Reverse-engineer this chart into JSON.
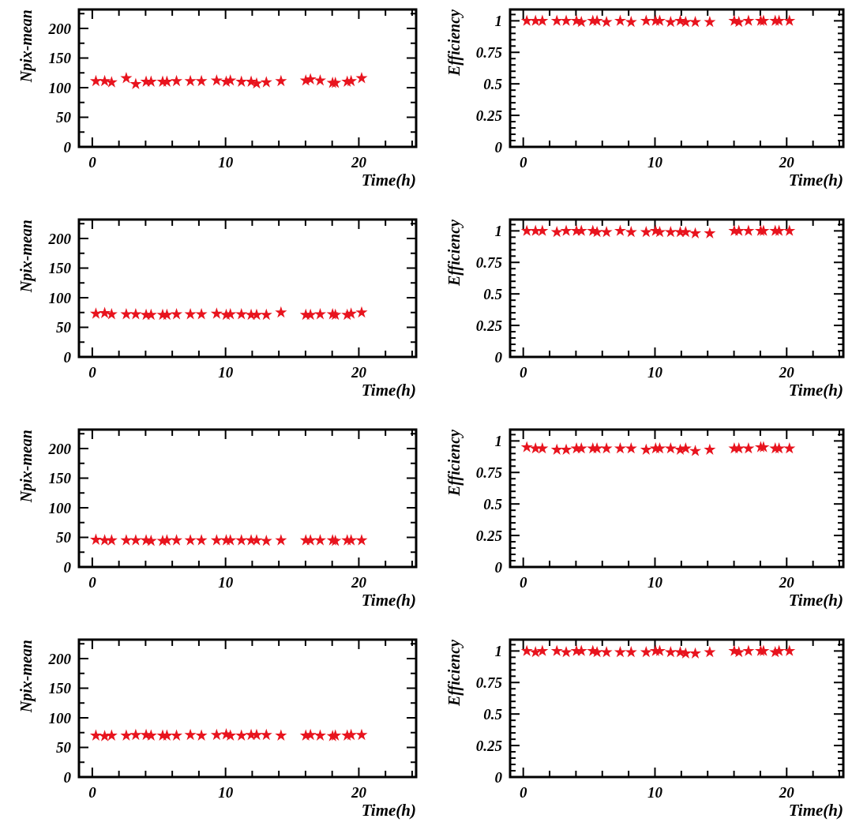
{
  "chart_data": [
    {
      "type": "scatter",
      "ylabel": "Npix-mean",
      "xlabel": "Time(h)",
      "marker": "star",
      "color": "#e8141e",
      "xlim": [
        -1,
        24.3
      ],
      "ylim": [
        0,
        232
      ],
      "xticks": [
        0,
        {
          "value": 2,
          "label": null
        },
        {
          "value": 4,
          "label": null
        },
        {
          "value": 6,
          "label": null
        },
        {
          "value": 8,
          "label": null
        },
        10,
        {
          "value": 12,
          "label": null
        },
        {
          "value": 14,
          "label": null
        },
        {
          "value": 16,
          "label": null
        },
        {
          "value": 18,
          "label": null
        },
        20,
        {
          "value": 22,
          "label": null
        },
        {
          "value": 24,
          "label": null
        }
      ],
      "yticks": [
        0,
        {
          "value": 25,
          "label": null
        },
        50,
        {
          "value": 75,
          "label": null
        },
        100,
        {
          "value": 125,
          "label": null
        },
        150,
        {
          "value": 175,
          "label": null
        },
        200,
        {
          "value": 225,
          "label": null
        }
      ],
      "x": [
        0.27,
        0.93,
        1.45,
        2.55,
        3.26,
        4.04,
        4.41,
        5.28,
        5.6,
        6.32,
        7.36,
        8.19,
        9.33,
        10.05,
        10.36,
        11.19,
        11.92,
        12.33,
        13.06,
        14.16,
        16.02,
        16.37,
        17.1,
        18.03,
        18.24,
        19.13,
        19.42,
        20.21
      ],
      "values": [
        111,
        111,
        109,
        116,
        106,
        110,
        110,
        110,
        110,
        111,
        111,
        111,
        112,
        110,
        112,
        110,
        110,
        107,
        109,
        111,
        112,
        114,
        112,
        108,
        108,
        110,
        111,
        116
      ]
    },
    {
      "type": "scatter",
      "ylabel": "Efficiency",
      "xlabel": "Time(h)",
      "marker": "star",
      "color": "#e8141e",
      "xlim": [
        -1,
        24.3
      ],
      "ylim": [
        0,
        1.09
      ],
      "xticks": [
        0,
        {
          "value": 2,
          "label": null
        },
        {
          "value": 4,
          "label": null
        },
        {
          "value": 6,
          "label": null
        },
        {
          "value": 8,
          "label": null
        },
        10,
        {
          "value": 12,
          "label": null
        },
        {
          "value": 14,
          "label": null
        },
        {
          "value": 16,
          "label": null
        },
        {
          "value": 18,
          "label": null
        },
        20,
        {
          "value": 22,
          "label": null
        },
        {
          "value": 24,
          "label": null
        }
      ],
      "yticks": [
        0,
        {
          "value": 0.05,
          "label": null
        },
        {
          "value": 0.1,
          "label": null
        },
        {
          "value": 0.15,
          "label": null
        },
        {
          "value": 0.2,
          "label": null
        },
        0.25,
        {
          "value": 0.3,
          "label": null
        },
        {
          "value": 0.35,
          "label": null
        },
        {
          "value": 0.4,
          "label": null
        },
        {
          "value": 0.45,
          "label": null
        },
        0.5,
        {
          "value": 0.55,
          "label": null
        },
        {
          "value": 0.6,
          "label": null
        },
        {
          "value": 0.65,
          "label": null
        },
        {
          "value": 0.7,
          "label": null
        },
        0.75,
        {
          "value": 0.8,
          "label": null
        },
        {
          "value": 0.85,
          "label": null
        },
        {
          "value": 0.9,
          "label": null
        },
        {
          "value": 0.95,
          "label": null
        },
        1,
        {
          "value": 1.05,
          "label": null
        }
      ],
      "x": [
        0.27,
        0.93,
        1.45,
        2.55,
        3.26,
        4.04,
        4.41,
        5.28,
        5.6,
        6.32,
        7.36,
        8.19,
        9.33,
        10.05,
        10.36,
        11.19,
        11.92,
        12.33,
        13.06,
        14.16,
        16.02,
        16.37,
        17.1,
        18.03,
        18.24,
        19.13,
        19.42,
        20.21
      ],
      "values": [
        1,
        1,
        1,
        1,
        1,
        1,
        0.99,
        1,
        1,
        0.99,
        1,
        0.99,
        1,
        1,
        1,
        0.99,
        1,
        0.99,
        0.99,
        0.99,
        1,
        0.99,
        1,
        1,
        1,
        1,
        1,
        1
      ]
    },
    {
      "type": "scatter",
      "ylabel": "Npix-mean",
      "xlabel": "Time(h)",
      "marker": "star",
      "color": "#e8141e",
      "xlim": [
        -1,
        24.3
      ],
      "ylim": [
        0,
        232
      ],
      "xticks": [
        0,
        {
          "value": 2,
          "label": null
        },
        {
          "value": 4,
          "label": null
        },
        {
          "value": 6,
          "label": null
        },
        {
          "value": 8,
          "label": null
        },
        10,
        {
          "value": 12,
          "label": null
        },
        {
          "value": 14,
          "label": null
        },
        {
          "value": 16,
          "label": null
        },
        {
          "value": 18,
          "label": null
        },
        20,
        {
          "value": 22,
          "label": null
        },
        {
          "value": 24,
          "label": null
        }
      ],
      "yticks": [
        0,
        {
          "value": 25,
          "label": null
        },
        50,
        {
          "value": 75,
          "label": null
        },
        100,
        {
          "value": 125,
          "label": null
        },
        150,
        {
          "value": 175,
          "label": null
        },
        200,
        {
          "value": 225,
          "label": null
        }
      ],
      "x": [
        0.27,
        0.93,
        1.45,
        2.55,
        3.26,
        4.04,
        4.41,
        5.28,
        5.6,
        6.32,
        7.36,
        8.19,
        9.33,
        10.05,
        10.36,
        11.19,
        11.92,
        12.33,
        13.06,
        14.16,
        16.02,
        16.37,
        17.1,
        18.03,
        18.24,
        19.13,
        19.42,
        20.21
      ],
      "values": [
        73,
        74,
        72,
        72,
        72,
        71,
        71,
        71,
        71,
        72,
        72,
        72,
        73,
        71,
        72,
        72,
        71,
        71,
        71,
        75,
        71,
        71,
        72,
        72,
        71,
        71,
        73,
        75
      ]
    },
    {
      "type": "scatter",
      "ylabel": "Efficiency",
      "xlabel": "Time(h)",
      "marker": "star",
      "color": "#e8141e",
      "xlim": [
        -1,
        24.3
      ],
      "ylim": [
        0,
        1.09
      ],
      "xticks": [
        0,
        {
          "value": 2,
          "label": null
        },
        {
          "value": 4,
          "label": null
        },
        {
          "value": 6,
          "label": null
        },
        {
          "value": 8,
          "label": null
        },
        10,
        {
          "value": 12,
          "label": null
        },
        {
          "value": 14,
          "label": null
        },
        {
          "value": 16,
          "label": null
        },
        {
          "value": 18,
          "label": null
        },
        20,
        {
          "value": 22,
          "label": null
        },
        {
          "value": 24,
          "label": null
        }
      ],
      "yticks": [
        0,
        {
          "value": 0.05,
          "label": null
        },
        {
          "value": 0.1,
          "label": null
        },
        {
          "value": 0.15,
          "label": null
        },
        {
          "value": 0.2,
          "label": null
        },
        0.25,
        {
          "value": 0.3,
          "label": null
        },
        {
          "value": 0.35,
          "label": null
        },
        {
          "value": 0.4,
          "label": null
        },
        {
          "value": 0.45,
          "label": null
        },
        0.5,
        {
          "value": 0.55,
          "label": null
        },
        {
          "value": 0.6,
          "label": null
        },
        {
          "value": 0.65,
          "label": null
        },
        {
          "value": 0.7,
          "label": null
        },
        0.75,
        {
          "value": 0.8,
          "label": null
        },
        {
          "value": 0.85,
          "label": null
        },
        {
          "value": 0.9,
          "label": null
        },
        {
          "value": 0.95,
          "label": null
        },
        1,
        {
          "value": 1.05,
          "label": null
        }
      ],
      "x": [
        0.27,
        0.93,
        1.45,
        2.55,
        3.26,
        4.04,
        4.41,
        5.28,
        5.6,
        6.32,
        7.36,
        8.19,
        9.33,
        10.05,
        10.36,
        11.19,
        11.92,
        12.33,
        13.06,
        14.16,
        16.02,
        16.37,
        17.1,
        18.03,
        18.24,
        19.13,
        19.42,
        20.21
      ],
      "values": [
        1,
        1,
        1,
        0.99,
        1,
        1,
        1,
        1,
        0.99,
        0.99,
        1,
        0.99,
        0.99,
        1,
        0.99,
        0.99,
        0.99,
        0.99,
        0.98,
        0.98,
        1,
        1,
        1,
        1,
        1,
        1,
        1,
        1
      ]
    },
    {
      "type": "scatter",
      "ylabel": "Npix-mean",
      "xlabel": "Time(h)",
      "marker": "star",
      "color": "#e8141e",
      "xlim": [
        -1,
        24.3
      ],
      "ylim": [
        0,
        232
      ],
      "xticks": [
        0,
        {
          "value": 2,
          "label": null
        },
        {
          "value": 4,
          "label": null
        },
        {
          "value": 6,
          "label": null
        },
        {
          "value": 8,
          "label": null
        },
        10,
        {
          "value": 12,
          "label": null
        },
        {
          "value": 14,
          "label": null
        },
        {
          "value": 16,
          "label": null
        },
        {
          "value": 18,
          "label": null
        },
        20,
        {
          "value": 22,
          "label": null
        },
        {
          "value": 24,
          "label": null
        }
      ],
      "yticks": [
        0,
        {
          "value": 25,
          "label": null
        },
        50,
        {
          "value": 75,
          "label": null
        },
        100,
        {
          "value": 125,
          "label": null
        },
        150,
        {
          "value": 175,
          "label": null
        },
        200,
        {
          "value": 225,
          "label": null
        }
      ],
      "x": [
        0.27,
        0.93,
        1.45,
        2.55,
        3.26,
        4.04,
        4.41,
        5.28,
        5.6,
        6.32,
        7.36,
        8.19,
        9.33,
        10.05,
        10.36,
        11.19,
        11.92,
        12.33,
        13.06,
        14.16,
        16.02,
        16.37,
        17.1,
        18.03,
        18.24,
        19.13,
        19.42,
        20.21
      ],
      "values": [
        46,
        45,
        45,
        45,
        45,
        45,
        44,
        44,
        45,
        45,
        45,
        45,
        45,
        45,
        45,
        45,
        45,
        45,
        44,
        45,
        45,
        45,
        45,
        45,
        44,
        45,
        45,
        45
      ]
    },
    {
      "type": "scatter",
      "ylabel": "Efficiency",
      "xlabel": "Time(h)",
      "marker": "star",
      "color": "#e8141e",
      "xlim": [
        -1,
        24.3
      ],
      "ylim": [
        0,
        1.09
      ],
      "xticks": [
        0,
        {
          "value": 2,
          "label": null
        },
        {
          "value": 4,
          "label": null
        },
        {
          "value": 6,
          "label": null
        },
        {
          "value": 8,
          "label": null
        },
        10,
        {
          "value": 12,
          "label": null
        },
        {
          "value": 14,
          "label": null
        },
        {
          "value": 16,
          "label": null
        },
        {
          "value": 18,
          "label": null
        },
        20,
        {
          "value": 22,
          "label": null
        },
        {
          "value": 24,
          "label": null
        }
      ],
      "yticks": [
        0,
        {
          "value": 0.05,
          "label": null
        },
        {
          "value": 0.1,
          "label": null
        },
        {
          "value": 0.15,
          "label": null
        },
        {
          "value": 0.2,
          "label": null
        },
        0.25,
        {
          "value": 0.3,
          "label": null
        },
        {
          "value": 0.35,
          "label": null
        },
        {
          "value": 0.4,
          "label": null
        },
        {
          "value": 0.45,
          "label": null
        },
        0.5,
        {
          "value": 0.55,
          "label": null
        },
        {
          "value": 0.6,
          "label": null
        },
        {
          "value": 0.65,
          "label": null
        },
        {
          "value": 0.7,
          "label": null
        },
        0.75,
        {
          "value": 0.8,
          "label": null
        },
        {
          "value": 0.85,
          "label": null
        },
        {
          "value": 0.9,
          "label": null
        },
        {
          "value": 0.95,
          "label": null
        },
        1,
        {
          "value": 1.05,
          "label": null
        }
      ],
      "x": [
        0.27,
        0.93,
        1.45,
        2.55,
        3.26,
        4.04,
        4.41,
        5.28,
        5.6,
        6.32,
        7.36,
        8.19,
        9.33,
        10.05,
        10.36,
        11.19,
        11.92,
        12.33,
        13.06,
        14.16,
        16.02,
        16.37,
        17.1,
        18.03,
        18.24,
        19.13,
        19.42,
        20.21
      ],
      "values": [
        0.95,
        0.94,
        0.94,
        0.93,
        0.93,
        0.94,
        0.94,
        0.94,
        0.94,
        0.94,
        0.94,
        0.94,
        0.93,
        0.94,
        0.94,
        0.94,
        0.93,
        0.94,
        0.92,
        0.93,
        0.94,
        0.94,
        0.94,
        0.95,
        0.95,
        0.94,
        0.94,
        0.94
      ]
    },
    {
      "type": "scatter",
      "ylabel": "Npix-mean",
      "xlabel": "Time(h)",
      "marker": "star",
      "color": "#e8141e",
      "xlim": [
        -1,
        24.3
      ],
      "ylim": [
        0,
        232
      ],
      "xticks": [
        0,
        {
          "value": 2,
          "label": null
        },
        {
          "value": 4,
          "label": null
        },
        {
          "value": 6,
          "label": null
        },
        {
          "value": 8,
          "label": null
        },
        10,
        {
          "value": 12,
          "label": null
        },
        {
          "value": 14,
          "label": null
        },
        {
          "value": 16,
          "label": null
        },
        {
          "value": 18,
          "label": null
        },
        20,
        {
          "value": 22,
          "label": null
        },
        {
          "value": 24,
          "label": null
        }
      ],
      "yticks": [
        0,
        {
          "value": 25,
          "label": null
        },
        50,
        {
          "value": 75,
          "label": null
        },
        100,
        {
          "value": 125,
          "label": null
        },
        150,
        {
          "value": 175,
          "label": null
        },
        200,
        {
          "value": 225,
          "label": null
        }
      ],
      "x": [
        0.27,
        0.93,
        1.45,
        2.55,
        3.26,
        4.04,
        4.41,
        5.28,
        5.6,
        6.32,
        7.36,
        8.19,
        9.33,
        10.05,
        10.36,
        11.19,
        11.92,
        12.33,
        13.06,
        14.16,
        16.02,
        16.37,
        17.1,
        18.03,
        18.24,
        19.13,
        19.42,
        20.21
      ],
      "values": [
        70,
        69,
        70,
        70,
        71,
        71,
        70,
        70,
        70,
        70,
        71,
        70,
        71,
        72,
        70,
        70,
        71,
        71,
        71,
        70,
        70,
        71,
        70,
        69,
        70,
        70,
        71,
        71
      ]
    },
    {
      "type": "scatter",
      "ylabel": "Efficiency",
      "xlabel": "Time(h)",
      "marker": "star",
      "color": "#e8141e",
      "xlim": [
        -1,
        24.3
      ],
      "ylim": [
        0,
        1.09
      ],
      "xticks": [
        0,
        {
          "value": 2,
          "label": null
        },
        {
          "value": 4,
          "label": null
        },
        {
          "value": 6,
          "label": null
        },
        {
          "value": 8,
          "label": null
        },
        10,
        {
          "value": 12,
          "label": null
        },
        {
          "value": 14,
          "label": null
        },
        {
          "value": 16,
          "label": null
        },
        {
          "value": 18,
          "label": null
        },
        20,
        {
          "value": 22,
          "label": null
        },
        {
          "value": 24,
          "label": null
        }
      ],
      "yticks": [
        0,
        {
          "value": 0.05,
          "label": null
        },
        {
          "value": 0.1,
          "label": null
        },
        {
          "value": 0.15,
          "label": null
        },
        {
          "value": 0.2,
          "label": null
        },
        0.25,
        {
          "value": 0.3,
          "label": null
        },
        {
          "value": 0.35,
          "label": null
        },
        {
          "value": 0.4,
          "label": null
        },
        {
          "value": 0.45,
          "label": null
        },
        0.5,
        {
          "value": 0.55,
          "label": null
        },
        {
          "value": 0.6,
          "label": null
        },
        {
          "value": 0.65,
          "label": null
        },
        {
          "value": 0.7,
          "label": null
        },
        0.75,
        {
          "value": 0.8,
          "label": null
        },
        {
          "value": 0.85,
          "label": null
        },
        {
          "value": 0.9,
          "label": null
        },
        {
          "value": 0.95,
          "label": null
        },
        1,
        {
          "value": 1.05,
          "label": null
        }
      ],
      "x": [
        0.27,
        0.93,
        1.45,
        2.55,
        3.26,
        4.04,
        4.41,
        5.28,
        5.6,
        6.32,
        7.36,
        8.19,
        9.33,
        10.05,
        10.36,
        11.19,
        11.92,
        12.33,
        13.06,
        14.16,
        16.02,
        16.37,
        17.1,
        18.03,
        18.24,
        19.13,
        19.42,
        20.21
      ],
      "values": [
        1,
        0.99,
        1,
        1,
        0.99,
        1,
        1,
        1,
        0.99,
        0.99,
        0.99,
        0.99,
        0.99,
        1,
        1,
        0.99,
        0.99,
        0.98,
        0.98,
        0.99,
        1,
        0.99,
        1,
        1,
        1,
        0.99,
        1,
        1
      ]
    }
  ]
}
